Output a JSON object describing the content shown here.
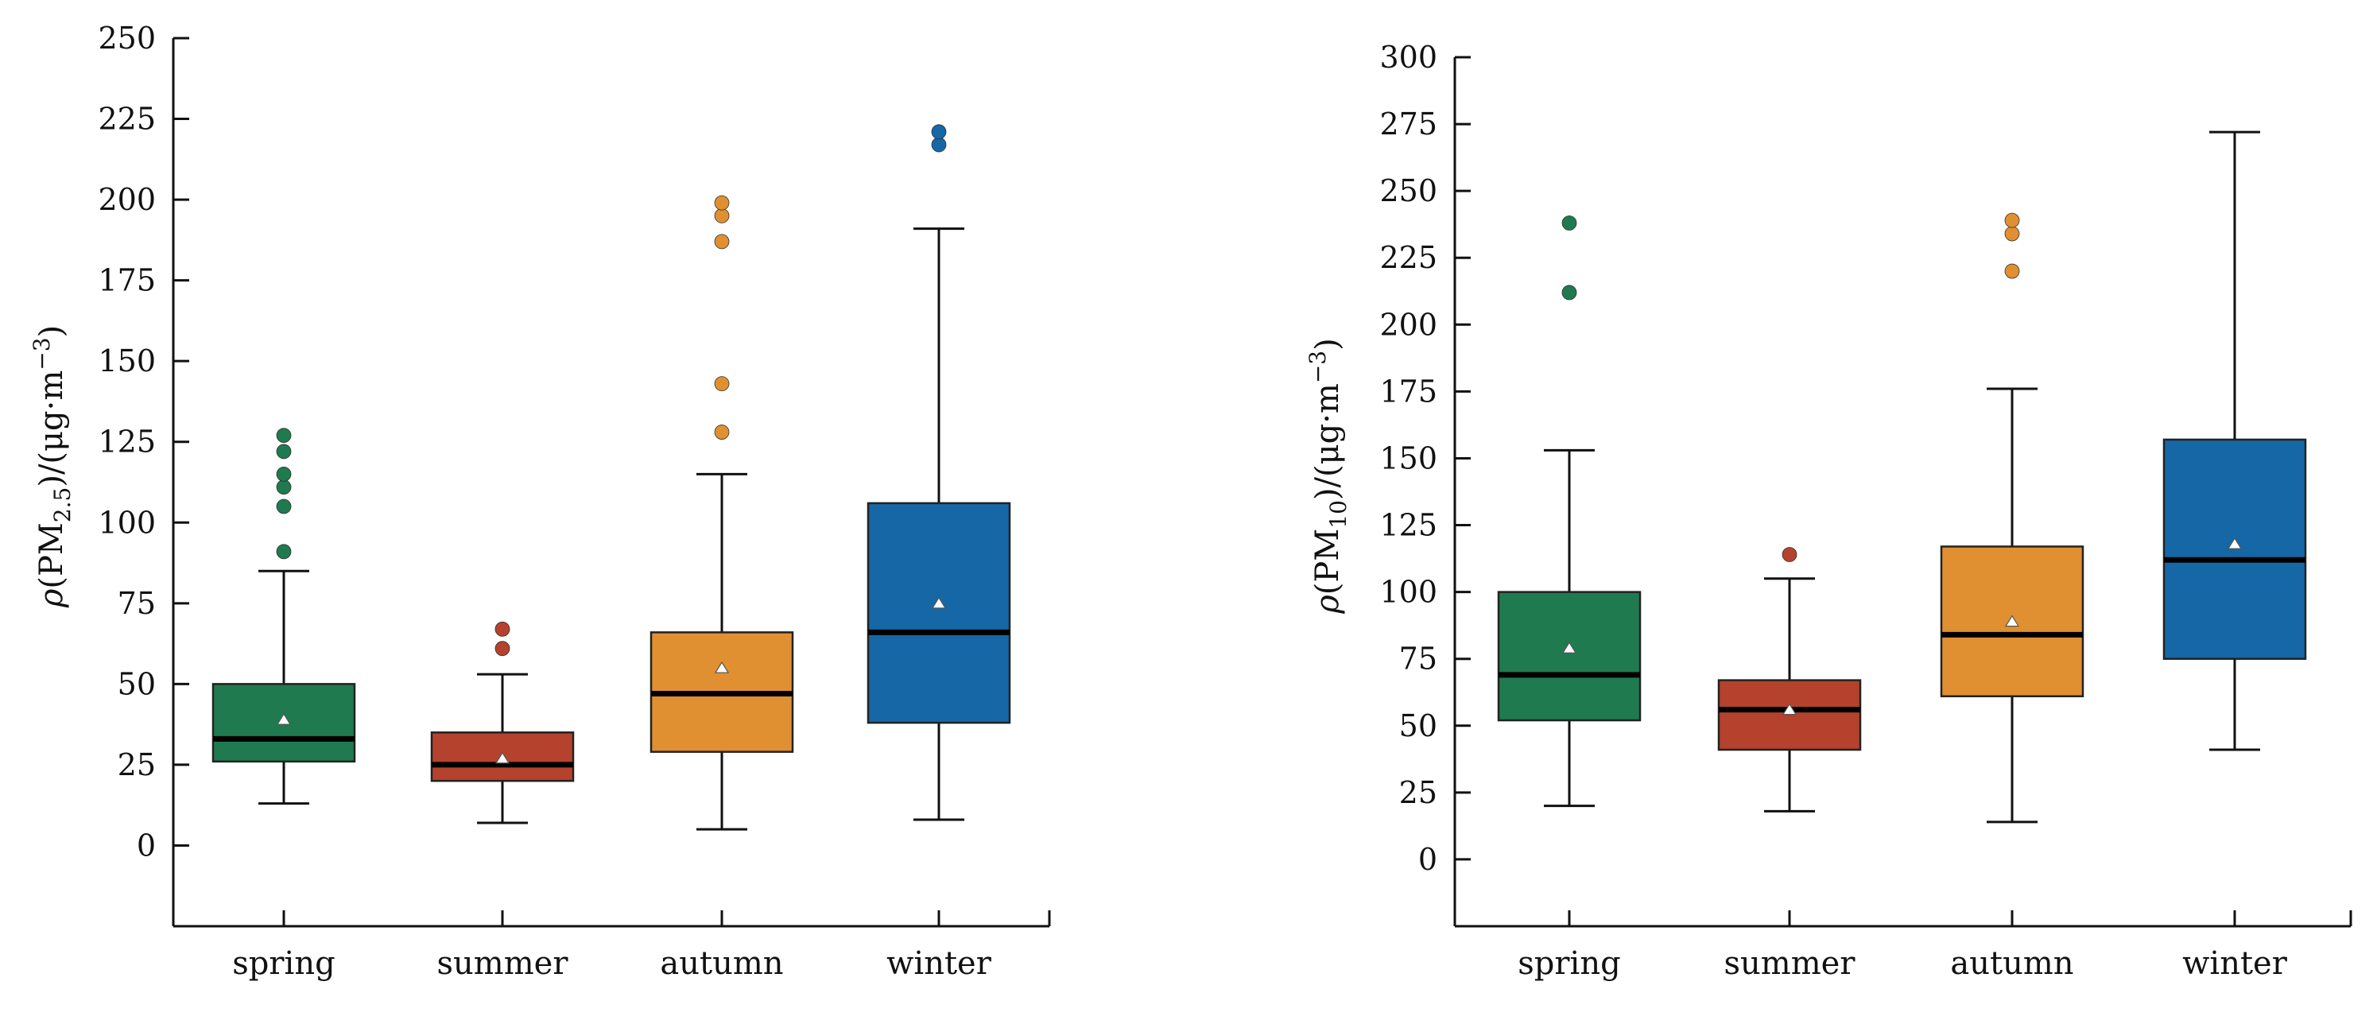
{
  "chart_data": [
    {
      "type": "box",
      "title": "",
      "xlabel": "",
      "ylabel": {
        "prefix": "ρ",
        "open": "(PM",
        "sub": "2.5",
        "close": ")/(μg·m",
        "sup": "−3",
        "end": ")"
      },
      "ylim": [
        -25,
        250
      ],
      "yticks": [
        0,
        25,
        50,
        75,
        100,
        125,
        150,
        175,
        200,
        225,
        250
      ],
      "categories": [
        "spring",
        "summer",
        "autumn",
        "winter"
      ],
      "colors": [
        "#1f7a4f",
        "#b5422c",
        "#e08f31",
        "#1567a6"
      ],
      "boxes": [
        {
          "whisker_low": 13,
          "q1": 26,
          "median": 33,
          "q3": 50,
          "whisker_high": 85,
          "mean": 39,
          "outliers": [
            91,
            105,
            111,
            115,
            122,
            127
          ]
        },
        {
          "whisker_low": 7,
          "q1": 20,
          "median": 25,
          "q3": 35,
          "whisker_high": 53,
          "mean": 27,
          "outliers": [
            61,
            67
          ]
        },
        {
          "whisker_low": 5,
          "q1": 29,
          "median": 47,
          "q3": 66,
          "whisker_high": 115,
          "mean": 55,
          "outliers": [
            128,
            143,
            187,
            195,
            199
          ]
        },
        {
          "whisker_low": 8,
          "q1": 38,
          "median": 66,
          "q3": 106,
          "whisker_high": 191,
          "mean": 75,
          "outliers": [
            217,
            221
          ]
        }
      ]
    },
    {
      "type": "box",
      "title": "",
      "xlabel": "",
      "ylabel": {
        "prefix": "ρ",
        "open": "(PM",
        "sub": "10",
        "close": ")/(μg·m",
        "sup": "−3",
        "end": ")"
      },
      "ylim": [
        -25,
        300
      ],
      "yticks": [
        0,
        25,
        50,
        75,
        100,
        125,
        150,
        175,
        200,
        225,
        250,
        275,
        300
      ],
      "categories": [
        "spring",
        "summer",
        "autumn",
        "winter"
      ],
      "colors": [
        "#1f7a4f",
        "#b5422c",
        "#e08f31",
        "#1567a6"
      ],
      "boxes": [
        {
          "whisker_low": 20,
          "q1": 52,
          "median": 69,
          "q3": 100,
          "whisker_high": 153,
          "mean": 79,
          "outliers": [
            212,
            238
          ]
        },
        {
          "whisker_low": 18,
          "q1": 41,
          "median": 56,
          "q3": 67,
          "whisker_high": 105,
          "mean": 56,
          "outliers": [
            114
          ]
        },
        {
          "whisker_low": 14,
          "q1": 61,
          "median": 84,
          "q3": 117,
          "whisker_high": 176,
          "mean": 89,
          "outliers": [
            220,
            234,
            239
          ]
        },
        {
          "whisker_low": 41,
          "q1": 75,
          "median": 112,
          "q3": 157,
          "whisker_high": 272,
          "mean": 118,
          "outliers": []
        }
      ]
    }
  ]
}
